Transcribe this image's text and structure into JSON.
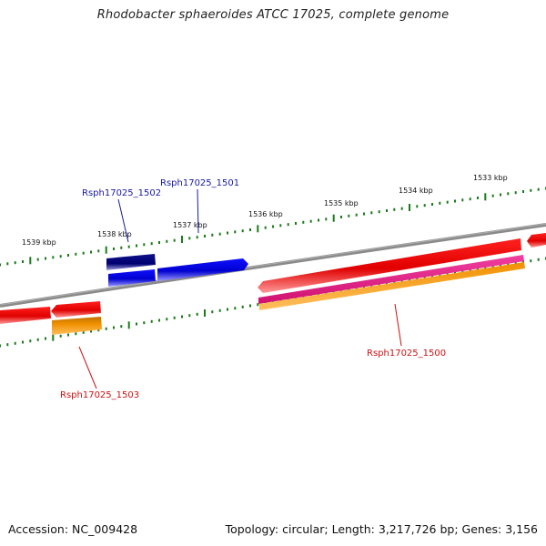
{
  "title": "Rhodobacter sphaeroides ATCC 17025, complete genome",
  "footer": {
    "accession": "Accession: NC_009428",
    "summary": "Topology: circular; Length: 3,217,726 bp; Genes: 3,156"
  },
  "ticks": [
    {
      "label": "1533 kbp"
    },
    {
      "label": "1534 kbp"
    },
    {
      "label": "1535 kbp"
    },
    {
      "label": "1536 kbp"
    },
    {
      "label": "1537 kbp"
    },
    {
      "label": "1538 kbp"
    },
    {
      "label": "1539 kbp"
    }
  ],
  "gene_labels": [
    {
      "label": "Rsph17025_1502"
    },
    {
      "label": "Rsph17025_1501"
    },
    {
      "label": "Rsph17025_1500"
    },
    {
      "label": "Rsph17025_1503"
    }
  ],
  "colors": {
    "backbone": "#808080",
    "tick": "#1a7a1a",
    "forward_gene": "#0000ee",
    "forward_gene_dark": "#0a0a80",
    "reverse_gene": "#ee0000",
    "reverse_magenta": "#e0208a",
    "reverse_orange": "#f08a00",
    "label_blue": "#1a1aa0",
    "label_red": "#cc1111"
  }
}
